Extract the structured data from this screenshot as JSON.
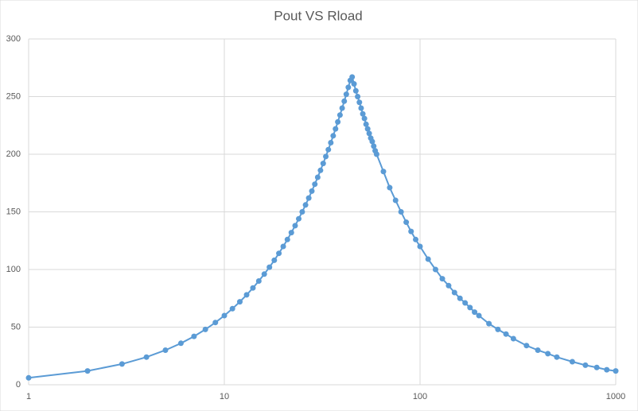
{
  "chart_data": {
    "type": "scatter-line",
    "title": "Pout VS Rload",
    "x": [
      1,
      2,
      3,
      4,
      5,
      6,
      7,
      8,
      9,
      10,
      11,
      12,
      13,
      14,
      15,
      16,
      17,
      18,
      19,
      20,
      21,
      22,
      23,
      24,
      25,
      26,
      27,
      28,
      29,
      30,
      31,
      32,
      33,
      34,
      35,
      36,
      37,
      38,
      39,
      40,
      41,
      42,
      43,
      44,
      45,
      46,
      47,
      48,
      49,
      50,
      51,
      52,
      53,
      54,
      55,
      56,
      57,
      58,
      59,
      60,
      65,
      70,
      75,
      80,
      85,
      90,
      95,
      100,
      110,
      120,
      130,
      140,
      150,
      160,
      170,
      180,
      190,
      200,
      225,
      250,
      275,
      300,
      350,
      400,
      450,
      500,
      600,
      700,
      800,
      900,
      1000
    ],
    "values": [
      6,
      12,
      18,
      24,
      30,
      36,
      42,
      48,
      54,
      60,
      66,
      72,
      78,
      84,
      90,
      96,
      102,
      108,
      114,
      120,
      126,
      132,
      138,
      144,
      150,
      156,
      162,
      168,
      174,
      180,
      186,
      192,
      198,
      204,
      210,
      216,
      222,
      228,
      234,
      240,
      246,
      252,
      258,
      264,
      267,
      261,
      255,
      250,
      245,
      240,
      235,
      231,
      226,
      222,
      218,
      214,
      211,
      207,
      203,
      200,
      185,
      171,
      160,
      150,
      141,
      133,
      126,
      120,
      109,
      100,
      92,
      86,
      80,
      75,
      71,
      67,
      63,
      60,
      53,
      48,
      44,
      40,
      34,
      30,
      27,
      24,
      20,
      17,
      15,
      13,
      12
    ],
    "color": "#5b9bd5",
    "xscale": "log",
    "xlim": [
      1,
      1000
    ],
    "xticks": [
      1,
      10,
      100,
      1000
    ],
    "ylim": [
      0,
      300
    ],
    "yticks": [
      0,
      50,
      100,
      150,
      200,
      250,
      300
    ],
    "grid": true
  }
}
